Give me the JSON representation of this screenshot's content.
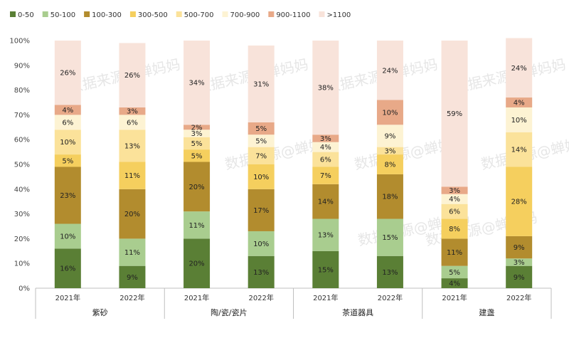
{
  "chart_data": {
    "type": "bar",
    "stacked": true,
    "percent_stacked": true,
    "ylim": [
      0,
      100
    ],
    "ytick_labels": [
      "0%",
      "10%",
      "20%",
      "30%",
      "40%",
      "50%",
      "60%",
      "70%",
      "80%",
      "90%",
      "100%"
    ],
    "watermark": "数据来源@蝉妈妈",
    "legend_position": "top-left",
    "groups": [
      {
        "name": "紫砂",
        "bars": [
          "2021年",
          "2022年"
        ]
      },
      {
        "name": "陶/瓷/瓷片",
        "bars": [
          "2021年",
          "2022年"
        ]
      },
      {
        "name": "茶道器具",
        "bars": [
          "2021年",
          "2022年"
        ]
      },
      {
        "name": "建盏",
        "bars": [
          "2021年",
          "2022年"
        ]
      }
    ],
    "series": [
      {
        "name": "0-50",
        "color": "#5a7f35",
        "values": [
          16,
          9,
          20,
          13,
          15,
          13,
          4,
          9
        ],
        "labels": [
          "16%",
          "9%",
          "20%",
          "13%",
          "15%",
          "13%",
          "4%",
          "9%"
        ]
      },
      {
        "name": "50-100",
        "color": "#a9cd8f",
        "values": [
          10,
          11,
          11,
          10,
          13,
          15,
          5,
          3
        ],
        "labels": [
          "10%",
          "11%",
          "11%",
          "10%",
          "13%",
          "15%",
          "5%",
          "3%"
        ]
      },
      {
        "name": "100-300",
        "color": "#b28c2e",
        "values": [
          23,
          20,
          20,
          17,
          14,
          18,
          11,
          9
        ],
        "labels": [
          "23%",
          "20%",
          "20%",
          "17%",
          "14%",
          "18%",
          "11%",
          "9%"
        ]
      },
      {
        "name": "300-500",
        "color": "#f5cf5e",
        "values": [
          5,
          11,
          5,
          10,
          7,
          8,
          8,
          28
        ],
        "labels": [
          "5%",
          "11%",
          "5%",
          "10%",
          "7%",
          "8%",
          "8%",
          "28%"
        ]
      },
      {
        "name": "500-700",
        "color": "#fbe29a",
        "values": [
          10,
          13,
          5,
          7,
          6,
          3,
          6,
          14
        ],
        "labels": [
          "10%",
          "13%",
          "5%",
          "7%",
          "6%",
          "3%",
          "6%",
          "14%"
        ]
      },
      {
        "name": "700-900",
        "color": "#fdf3d3",
        "values": [
          6,
          6,
          3,
          5,
          4,
          9,
          4,
          10
        ],
        "labels": [
          "6%",
          "6%",
          "3%",
          "5%",
          "4%",
          "9%",
          "4%",
          "10%"
        ]
      },
      {
        "name": "900-1100",
        "color": "#e8a988",
        "values": [
          4,
          3,
          2,
          5,
          3,
          10,
          3,
          4
        ],
        "labels": [
          "4%",
          "3%",
          "2%",
          "5%",
          "3%",
          "10%",
          "3%",
          "4%"
        ]
      },
      {
        "name": ">1100",
        "color": "#f8e3da",
        "values": [
          26,
          26,
          34,
          31,
          38,
          24,
          59,
          24
        ],
        "labels": [
          "26%",
          "26%",
          "34%",
          "31%",
          "38%",
          "24%",
          "59%",
          "24%"
        ]
      }
    ]
  }
}
